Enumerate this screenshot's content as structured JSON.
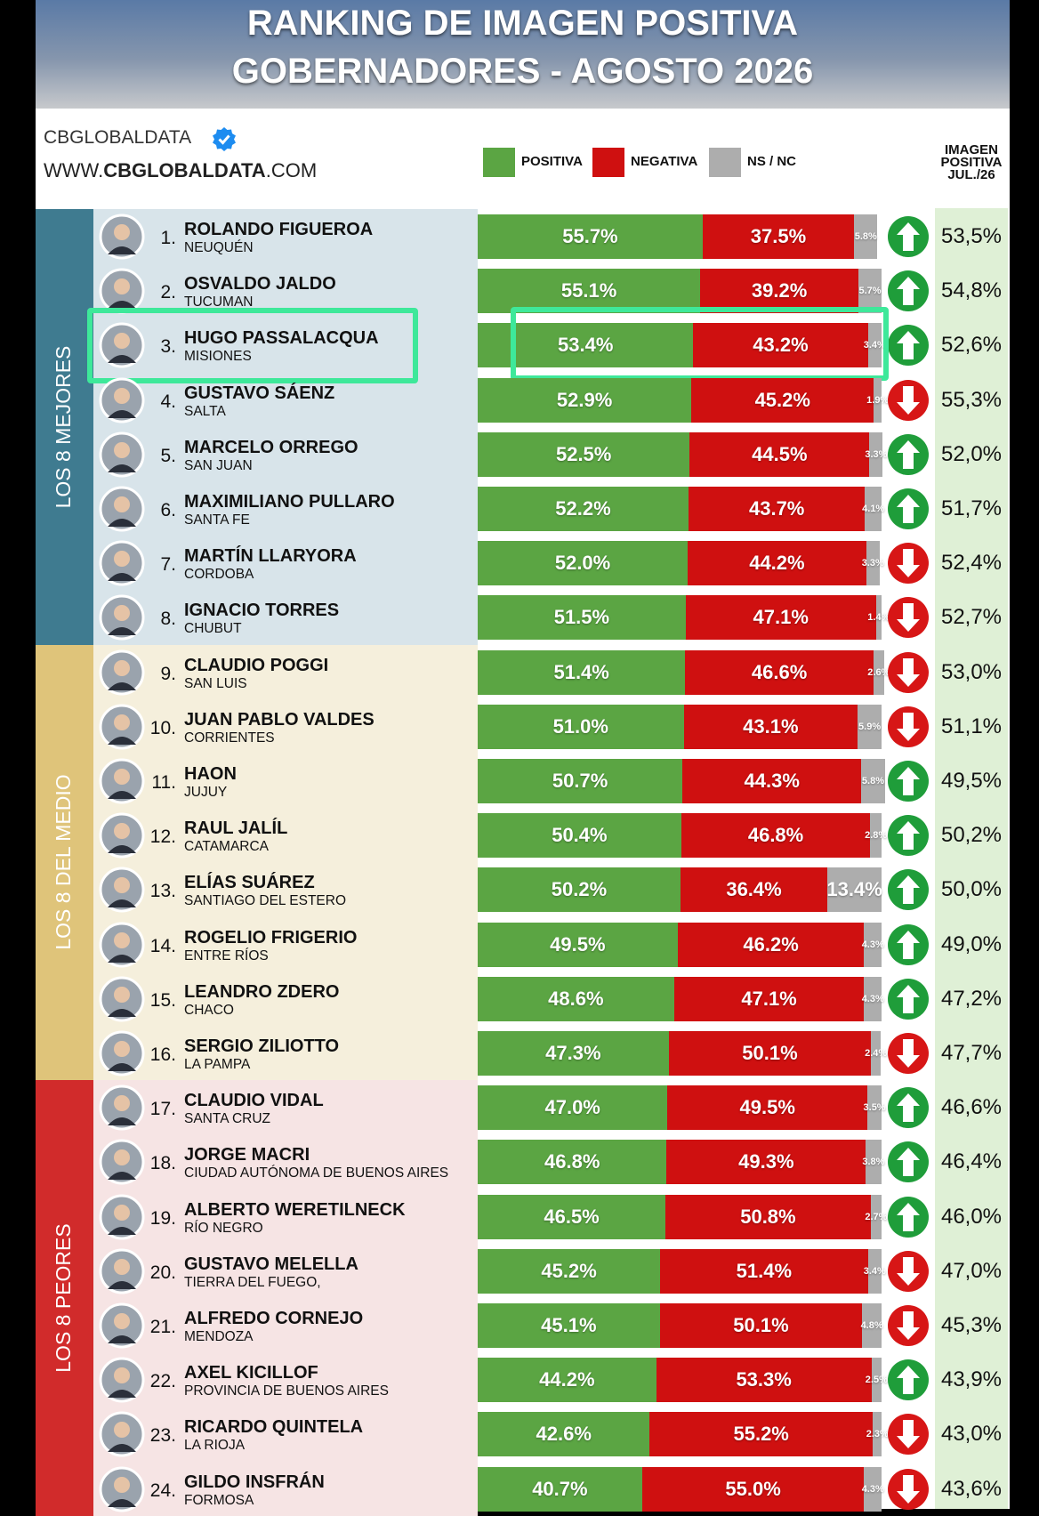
{
  "title": [
    "RANKING DE IMAGEN POSITIVA",
    "GOBERNADORES - AGOSTO 2026"
  ],
  "source": {
    "name": "CBGLOBALDATA",
    "url": [
      "WWW.",
      "CBGLOBALDATA",
      ".COM"
    ]
  },
  "chart_data": {
    "type": "bar",
    "orientation": "horizontal",
    "stacked": true,
    "categories": [
      "ROLANDO FIGUEROA",
      "OSVALDO JALDO",
      "HUGO PASSALACQUA",
      "GUSTAVO SÁENZ",
      "MARCELO ORREGO",
      "MAXIMILIANO PULLARO",
      "MARTÍN LLARYORA",
      "IGNACIO TORRES",
      "CLAUDIO POGGI",
      "JUAN PABLO VALDES",
      "HAON",
      "RAUL JALÍL",
      "ELÍAS SUÁREZ",
      "ROGELIO FRIGERIO",
      "LEANDRO ZDERO",
      "SERGIO ZILIOTTO",
      "CLAUDIO VIDAL",
      "JORGE MACRI",
      "ALBERTO WERETILNECK",
      "GUSTAVO MELELLA",
      "ALFREDO CORNEJO",
      "AXEL KICILLOF",
      "RICARDO QUINTELA",
      "GILDO INSFRÁN"
    ],
    "subtitles": [
      "NEUQUÉN",
      "TUCUMAN",
      "MISIONES",
      "SALTA",
      "SAN JUAN",
      "SANTA FE",
      "CORDOBA",
      "CHUBUT",
      "SAN LUIS",
      "CORRIENTES",
      "JUJUY",
      "CATAMARCA",
      "SANTIAGO DEL ESTERO",
      "ENTRE RÍOS",
      "CHACO",
      "LA PAMPA",
      "SANTA CRUZ",
      "CIUDAD AUTÓNOMA DE BUENOS AIRES",
      "RÍO NEGRO",
      "TIERRA DEL FUEGO,",
      "MENDOZA",
      "PROVINCIA DE BUENOS AIRES",
      "LA RIOJA",
      "FORMOSA"
    ],
    "ranks": [
      "1.",
      "2.",
      "3.",
      "4.",
      "5.",
      "6.",
      "7.",
      "8.",
      "9.",
      "10.",
      "11.",
      "12.",
      "13.",
      "14.",
      "15.",
      "16.",
      "17.",
      "18.",
      "19.",
      "20.",
      "21.",
      "22.",
      "23.",
      "24."
    ],
    "series": [
      {
        "name": "POSITIVA",
        "color": "#5ba543",
        "values": [
          55.7,
          55.1,
          53.4,
          52.9,
          52.5,
          52.2,
          52.0,
          51.5,
          51.4,
          51.0,
          50.7,
          50.4,
          50.2,
          49.5,
          48.6,
          47.3,
          47.0,
          46.8,
          46.5,
          45.2,
          45.1,
          44.2,
          42.6,
          40.7
        ],
        "value_labels": [
          "55.7%",
          "55.1%",
          "53.4%",
          "52.9%",
          "52.5%",
          "52.2%",
          "52.0%",
          "51.5%",
          "51.4%",
          "51.0%",
          "50.7%",
          "50.4%",
          "50.2%",
          "49.5%",
          "48.6%",
          "47.3%",
          "47.0%",
          "46.8%",
          "46.5%",
          "45.2%",
          "45.1%",
          "44.2%",
          "42.6%",
          "40.7%"
        ]
      },
      {
        "name": "NEGATIVA",
        "color": "#cf1010",
        "values": [
          37.5,
          39.2,
          43.2,
          45.2,
          44.5,
          43.7,
          44.2,
          47.1,
          46.6,
          43.1,
          44.3,
          46.8,
          36.4,
          46.2,
          47.1,
          50.1,
          49.5,
          49.3,
          50.8,
          51.4,
          50.1,
          53.3,
          55.2,
          55.0
        ],
        "value_labels": [
          "37.5%",
          "39.2%",
          "43.2%",
          "45.2%",
          "44.5%",
          "43.7%",
          "44.2%",
          "47.1%",
          "46.6%",
          "43.1%",
          "44.3%",
          "46.8%",
          "36.4%",
          "46.2%",
          "47.1%",
          "50.1%",
          "49.5%",
          "49.3%",
          "50.8%",
          "51.4%",
          "50.1%",
          "53.3%",
          "55.2%",
          "55.0%"
        ]
      },
      {
        "name": "NS / NC",
        "color": "#adadad",
        "values": [
          5.8,
          5.7,
          3.4,
          1.9,
          3.3,
          4.1,
          3.3,
          1.4,
          2.6,
          5.9,
          5.8,
          2.8,
          13.4,
          4.3,
          4.3,
          2.4,
          3.5,
          3.8,
          2.7,
          3.4,
          4.8,
          2.5,
          2.3,
          4.3
        ],
        "value_labels": [
          "5.8%",
          "5.7%",
          "3.4%",
          "1.9%",
          "3.3%",
          "4.1%",
          "3.3%",
          "1.4%",
          "2.6%",
          "5.9%",
          "5.8%",
          "2.8%",
          "13.4%",
          "4.3%",
          "4.3%",
          "2.4%",
          "3.5%",
          "3.8%",
          "2.7%",
          "3.4%",
          "4.8%",
          "2.5%",
          "2.3%",
          "4.3%"
        ]
      }
    ],
    "xlim": [
      0,
      100
    ],
    "groups": [
      {
        "name": "LOS 8 MEJORES",
        "color": "#3f7b90",
        "background": "#d8e4ea"
      },
      {
        "name": "LOS 8 DEL MEDIO",
        "color": "#dfc47a",
        "background": "#f5efdc"
      },
      {
        "name": "LOS 8 PEORES",
        "color": "#d12b2b",
        "background": "#f6e4e4"
      }
    ],
    "category_groups": [
      "LOS 8 MEJORES",
      "LOS 8 MEJORES",
      "LOS 8 MEJORES",
      "LOS 8 MEJORES",
      "LOS 8 MEJORES",
      "LOS 8 MEJORES",
      "LOS 8 MEJORES",
      "LOS 8 MEJORES",
      "LOS 8 DEL MEDIO",
      "LOS 8 DEL MEDIO",
      "LOS 8 DEL MEDIO",
      "LOS 8 DEL MEDIO",
      "LOS 8 DEL MEDIO",
      "LOS 8 DEL MEDIO",
      "LOS 8 DEL MEDIO",
      "LOS 8 DEL MEDIO",
      "LOS 8 PEORES",
      "LOS 8 PEORES",
      "LOS 8 PEORES",
      "LOS 8 PEORES",
      "LOS 8 PEORES",
      "LOS 8 PEORES",
      "LOS 8 PEORES",
      "LOS 8 PEORES"
    ],
    "previous": {
      "name": [
        "IMAGEN",
        "POSITIVA",
        "JUL./26"
      ],
      "background": "#dff0d6",
      "values": [
        53.5,
        54.8,
        52.6,
        55.3,
        52.0,
        51.7,
        52.4,
        52.7,
        53.0,
        51.1,
        49.5,
        50.2,
        50.0,
        49.0,
        47.2,
        47.7,
        46.6,
        46.4,
        46.0,
        47.0,
        45.3,
        43.9,
        43.0,
        43.6
      ],
      "value_labels": [
        "53,5%",
        "54,8%",
        "52,6%",
        "55,3%",
        "52,0%",
        "51,7%",
        "52,4%",
        "52,7%",
        "53,0%",
        "51,1%",
        "49,5%",
        "50,2%",
        "50,0%",
        "49,0%",
        "47,2%",
        "47,7%",
        "46,6%",
        "46,4%",
        "46,0%",
        "47,0%",
        "45,3%",
        "43,9%",
        "43,0%",
        "43,6%"
      ]
    },
    "trend": [
      "up",
      "up",
      "up",
      "down",
      "up",
      "up",
      "down",
      "down",
      "down",
      "down",
      "up",
      "up",
      "up",
      "up",
      "up",
      "down",
      "up",
      "up",
      "up",
      "down",
      "down",
      "up",
      "down",
      "down"
    ],
    "trend_colors": {
      "up": "#1f9d3a",
      "down": "#d71616"
    },
    "highlight": "HUGO PASSALACQUA",
    "highlight_color": "#3ee89a"
  }
}
